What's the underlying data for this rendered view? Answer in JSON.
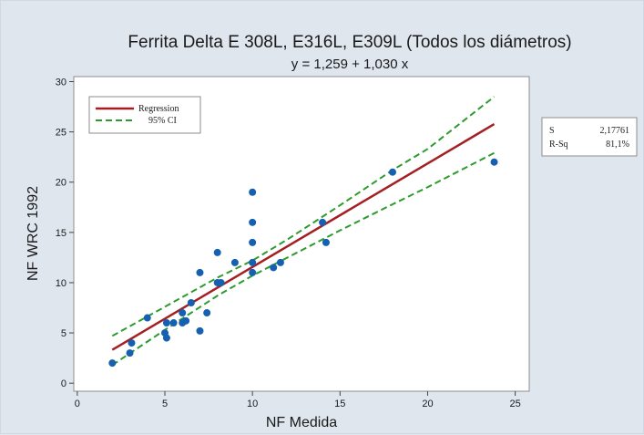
{
  "chart_data": {
    "type": "scatter",
    "title": "Ferrita Delta E 308L, E316L, E309L (Todos los diámetros)",
    "subtitle": "y = 1,259 + 1,030 x",
    "xlabel": "NF Medida",
    "ylabel": "NF WRC 1992",
    "xlim": [
      -0.2,
      25.8
    ],
    "ylim": [
      -0.8,
      30.5
    ],
    "xticks": [
      0,
      5,
      10,
      15,
      20,
      25
    ],
    "yticks": [
      0,
      5,
      10,
      15,
      20,
      25,
      30
    ],
    "grid": false,
    "legend_position": "top-left",
    "regression": {
      "intercept": 1.259,
      "slope": 1.03,
      "x_range": [
        2,
        23.8
      ]
    },
    "ci": {
      "lower": [
        [
          2,
          1.8
        ],
        [
          5,
          5.3
        ],
        [
          8,
          8.7
        ],
        [
          10,
          10.7
        ],
        [
          12,
          12.5
        ],
        [
          15,
          15.2
        ],
        [
          18,
          17.8
        ],
        [
          20,
          19.5
        ],
        [
          23.8,
          22.9
        ]
      ],
      "upper": [
        [
          2,
          4.7
        ],
        [
          5,
          7.6
        ],
        [
          8,
          10.5
        ],
        [
          10,
          12.2
        ],
        [
          12,
          14.3
        ],
        [
          15,
          17.7
        ],
        [
          18,
          21.2
        ],
        [
          20,
          23.3
        ],
        [
          23.8,
          28.5
        ]
      ]
    },
    "series": [
      {
        "name": "",
        "points": [
          [
            2,
            2
          ],
          [
            3,
            3
          ],
          [
            3.1,
            4
          ],
          [
            4,
            6.5
          ],
          [
            5,
            5
          ],
          [
            5.1,
            4.5
          ],
          [
            5.1,
            6
          ],
          [
            5.5,
            6
          ],
          [
            6,
            6
          ],
          [
            6,
            7
          ],
          [
            6.2,
            6.2
          ],
          [
            6.5,
            8
          ],
          [
            7,
            11
          ],
          [
            7,
            5.2
          ],
          [
            7.4,
            7
          ],
          [
            8,
            10
          ],
          [
            8,
            13
          ],
          [
            8.2,
            10
          ],
          [
            9,
            12
          ],
          [
            10,
            19
          ],
          [
            10,
            16
          ],
          [
            10,
            14
          ],
          [
            10,
            12
          ],
          [
            10,
            11
          ],
          [
            11.2,
            11.5
          ],
          [
            11.6,
            12
          ],
          [
            14,
            16
          ],
          [
            14.2,
            14
          ],
          [
            18,
            21
          ],
          [
            23.8,
            22
          ]
        ]
      }
    ],
    "legend": [
      {
        "label": "Regression",
        "color": "#a51e22",
        "style": "solid"
      },
      {
        "label": "95% CI",
        "color": "#2e9a2e",
        "style": "dashed"
      }
    ],
    "stats": [
      {
        "label": "S",
        "value": "2,17761"
      },
      {
        "label": "R-Sq",
        "value": "81,1%"
      }
    ],
    "colors": {
      "point": "#1560b0",
      "regression": "#a51e22",
      "ci": "#2e9a2e",
      "background": "#dfe6ee",
      "plot_background": "#ffffff"
    }
  }
}
